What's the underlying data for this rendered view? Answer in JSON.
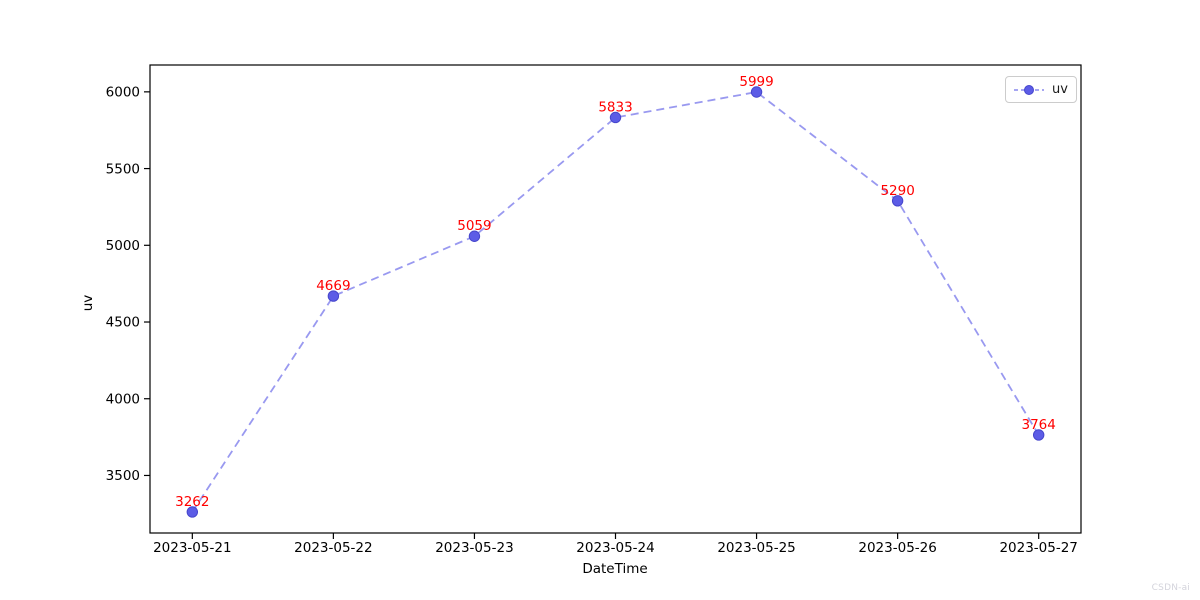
{
  "watermark": "CSDN-ai",
  "chart_data": {
    "type": "line",
    "title": "",
    "xlabel": "DateTime",
    "ylabel": "uv",
    "categories": [
      "2023-05-21",
      "2023-05-22",
      "2023-05-23",
      "2023-05-24",
      "2023-05-25",
      "2023-05-26",
      "2023-05-27"
    ],
    "series": [
      {
        "name": "uv",
        "values": [
          3262,
          4669,
          5059,
          5833,
          5999,
          5290,
          3764
        ],
        "line_style": "dashed",
        "marker": "circle",
        "line_color": "#9999f0",
        "marker_color": "#5c5ce6",
        "marker_edge_color": "#4646cc"
      }
    ],
    "annotations": {
      "show": true,
      "color": "#ff0000",
      "values": [
        3262,
        4669,
        5059,
        5833,
        5999,
        5290,
        3764
      ]
    },
    "yticks": [
      3500,
      4000,
      4500,
      5000,
      5500,
      6000
    ],
    "ylim": [
      3125,
      6175
    ],
    "x_margin": 0.3,
    "grid": false,
    "legend": {
      "position": "top-right",
      "entries": [
        "uv"
      ]
    },
    "axis_color": "#000000",
    "tick_label_color": "#000000"
  }
}
